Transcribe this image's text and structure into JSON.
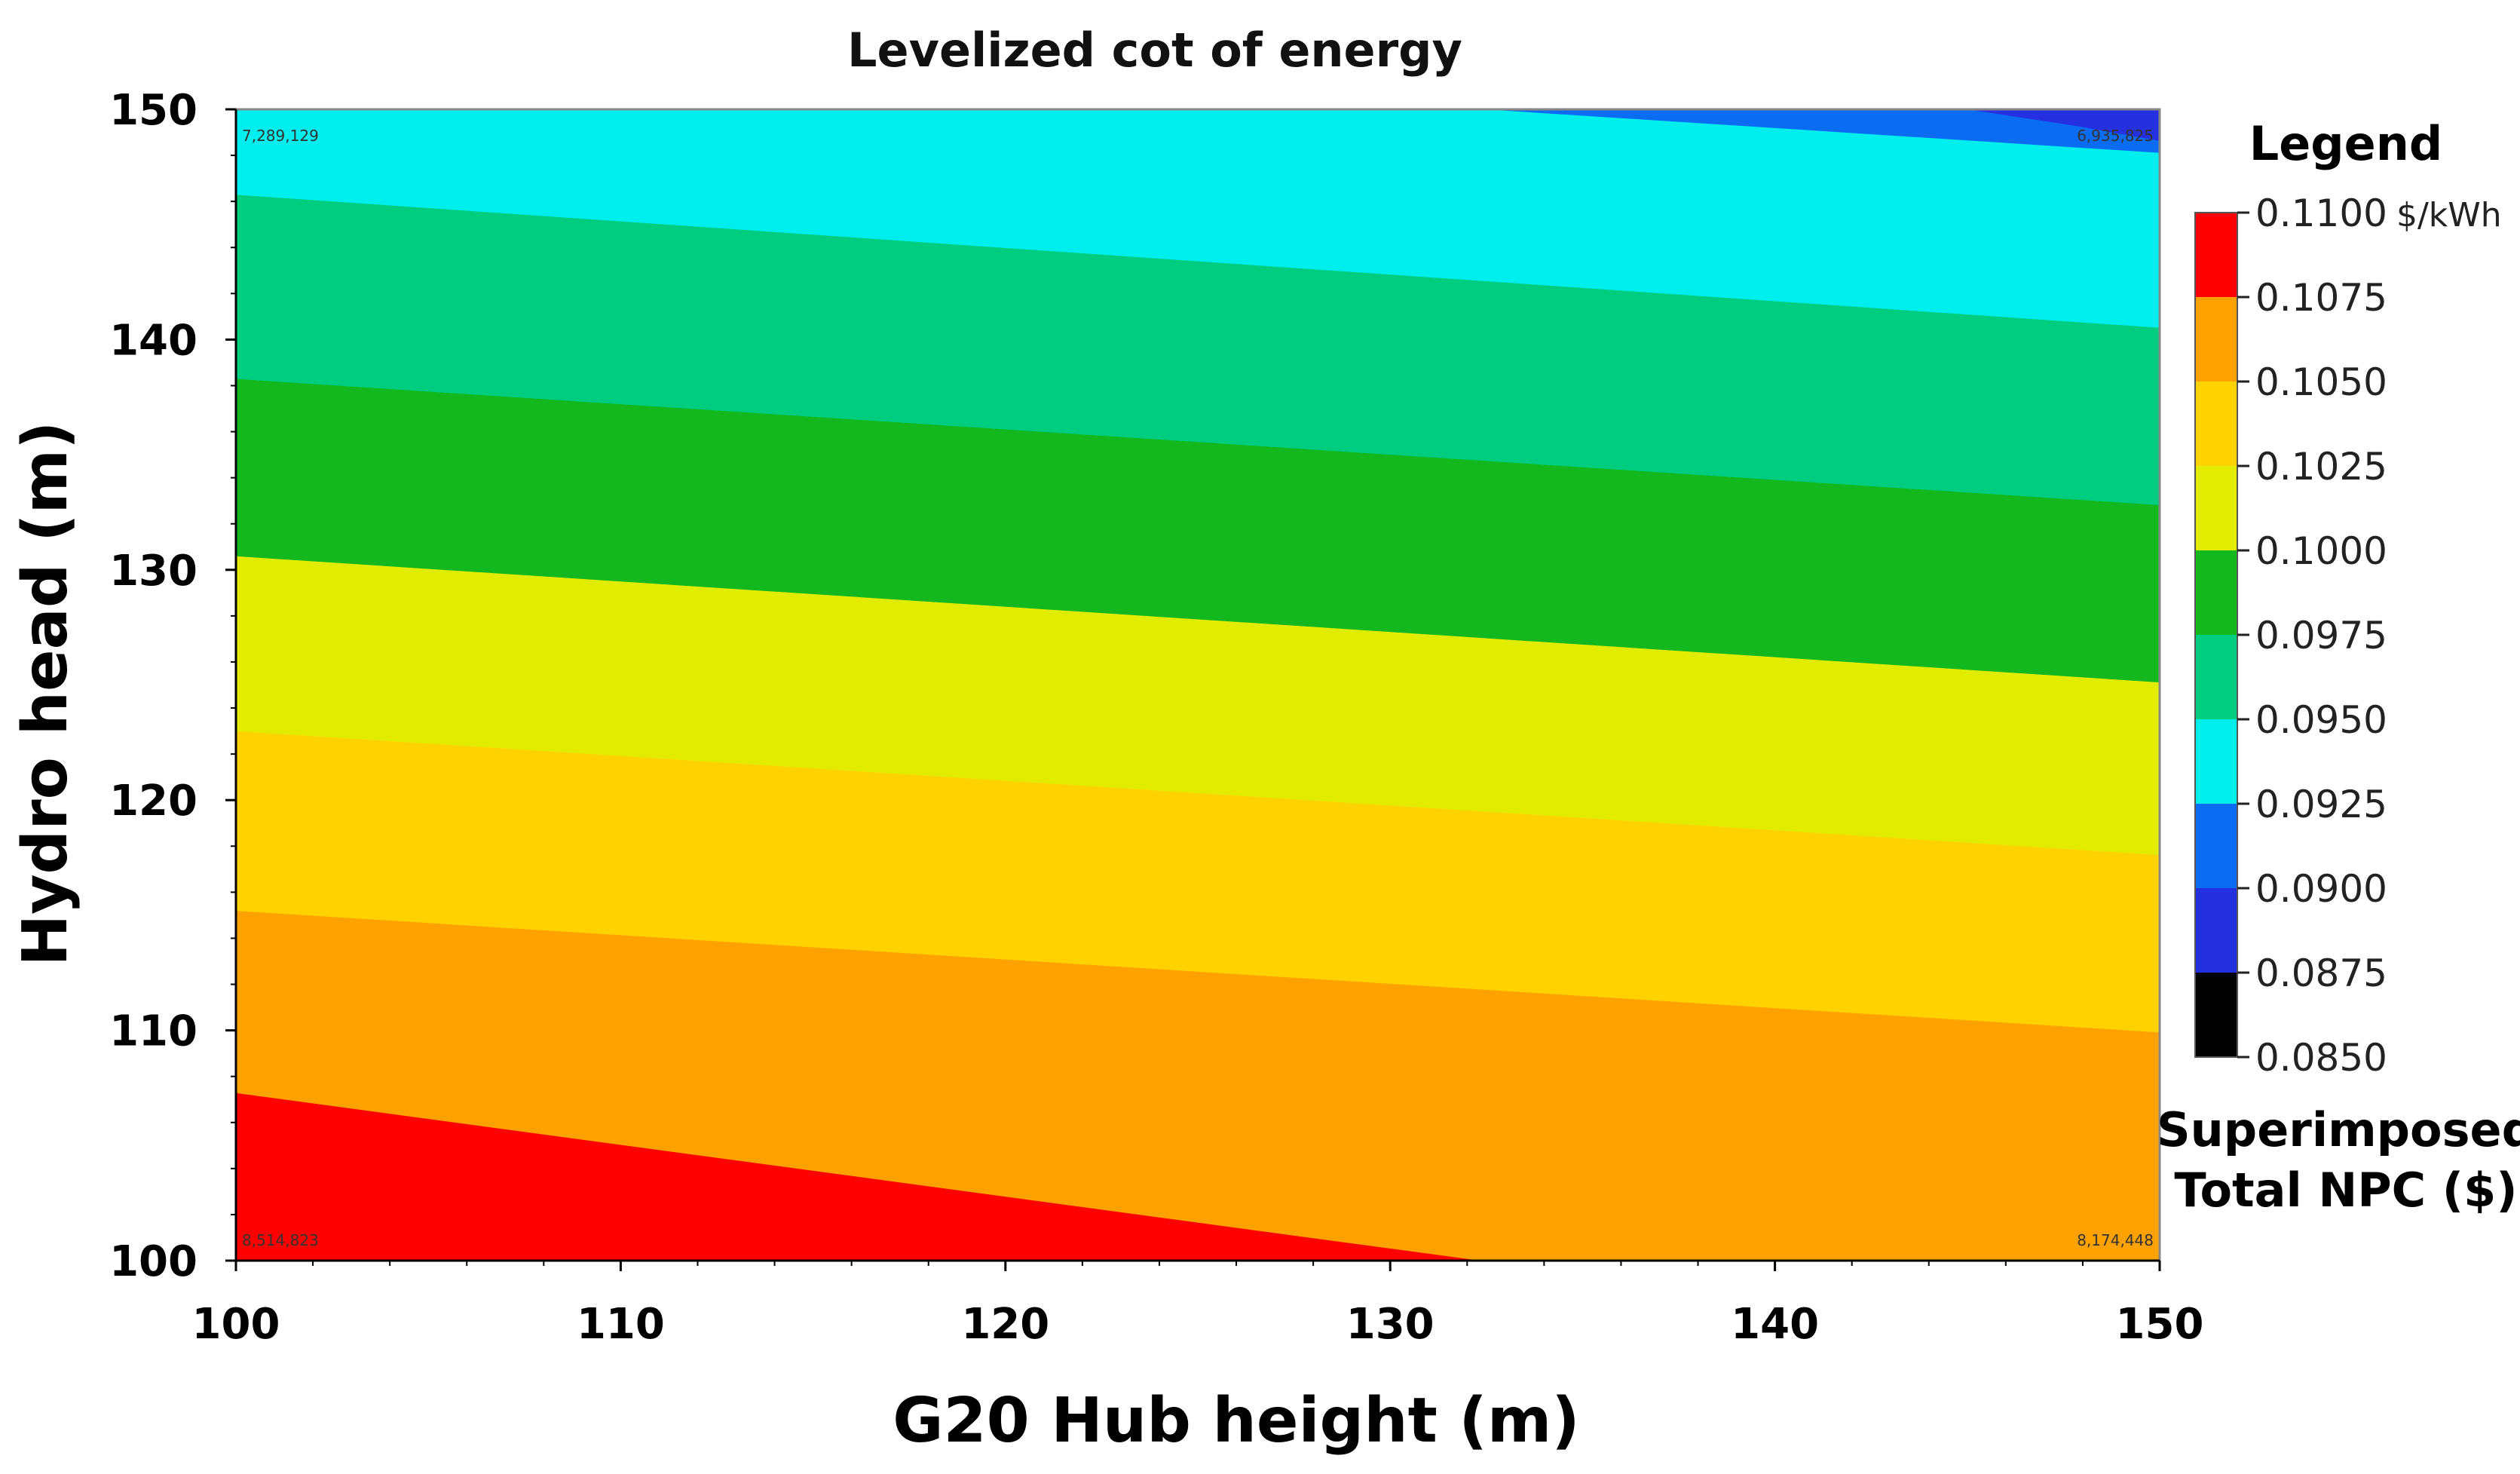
{
  "chart_data": {
    "type": "heatmap",
    "subtype": "contour",
    "title": "Levelized cot of energy",
    "xlabel": "G20 Hub height (m)",
    "ylabel": "Hydro head (m)",
    "xlim": [
      100,
      150
    ],
    "ylim": [
      100,
      150
    ],
    "x_ticks": [
      "100",
      "110",
      "120",
      "130",
      "140",
      "150"
    ],
    "y_ticks": [
      "100",
      "110",
      "120",
      "130",
      "140",
      "150"
    ],
    "contour_bands": [
      {
        "range": [
          0.1075,
          0.11
        ],
        "color": "#ff0000",
        "y_at_x100": 107.3,
        "y_at_x150": 96.0
      },
      {
        "range": [
          0.105,
          0.1075
        ],
        "color": "#ffa200",
        "y_at_x100": 115.2,
        "y_at_x150": 109.9
      },
      {
        "range": [
          0.1025,
          0.105
        ],
        "color": "#ffd200",
        "y_at_x100": 123.0,
        "y_at_x150": 117.6
      },
      {
        "range": [
          0.1,
          0.1025
        ],
        "color": "#e2ec00",
        "y_at_x100": 130.6,
        "y_at_x150": 125.1
      },
      {
        "range": [
          0.0975,
          0.1
        ],
        "color": "#13b81f",
        "y_at_x100": 138.3,
        "y_at_x150": 132.8
      },
      {
        "range": [
          0.095,
          0.0975
        ],
        "color": "#00cd80",
        "y_at_x100": 146.3,
        "y_at_x150": 140.5
      },
      {
        "range": [
          0.0925,
          0.095
        ],
        "color": "#00eeee",
        "y_at_x100": 153.5,
        "y_at_x150": 148.1
      },
      {
        "range": [
          0.09,
          0.0925
        ],
        "color": "#0a6cf2",
        "y_at_x100": 158.3,
        "y_at_x150": 153.0
      }
    ],
    "dark_corner_band": {
      "range": [
        0.0875,
        0.09
      ],
      "color": "#2530e0",
      "x_from": 145,
      "y_from": 149.3
    },
    "legend": {
      "title": "Legend",
      "unit": "$/kWh",
      "levels": [
        "0.1100",
        "0.1075",
        "0.1050",
        "0.1025",
        "0.1000",
        "0.0975",
        "0.0950",
        "0.0925",
        "0.0900",
        "0.0875",
        "0.0850"
      ],
      "colors": [
        "#ff0000",
        "#ffa200",
        "#ffd200",
        "#e2ec00",
        "#13b81f",
        "#00cd80",
        "#00eeee",
        "#0a6cf2",
        "#2530e0",
        "#000000"
      ],
      "superimposed_label_1": "Superimposed",
      "superimposed_label_2": "Total NPC ($)"
    },
    "npc_corners": [
      {
        "x": 100,
        "y": 150,
        "text": "7,289,129",
        "anchor": "start",
        "pos": "top-left"
      },
      {
        "x": 150,
        "y": 150,
        "text": "6,935,825",
        "anchor": "end",
        "pos": "top-right"
      },
      {
        "x": 100,
        "y": 100,
        "text": "8,514,823",
        "anchor": "start",
        "pos": "bottom-left"
      },
      {
        "x": 150,
        "y": 100,
        "text": "8,174,448",
        "anchor": "end",
        "pos": "bottom-right"
      }
    ]
  }
}
